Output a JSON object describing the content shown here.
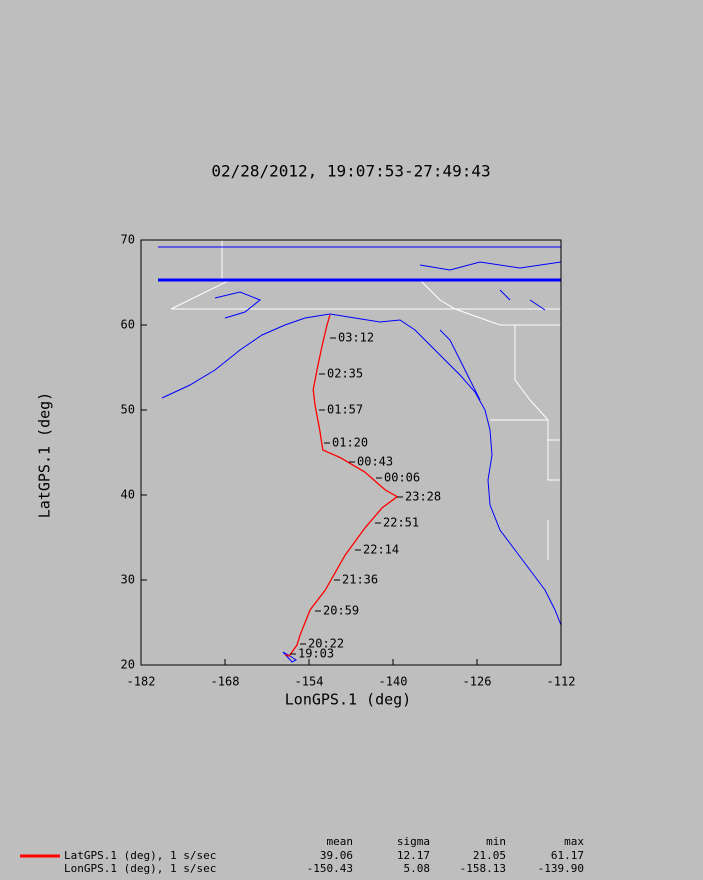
{
  "chart_data": {
    "type": "line",
    "title": "02/28/2012, 19:07:53-27:49:43",
    "x_label": "LonGPS.1 (deg)",
    "y_label": "LatGPS.1 (deg)",
    "x": [
      -158.0,
      -157.3,
      -156.0,
      -155.5,
      -153.8,
      -151.3,
      -148.0,
      -144.7,
      -141.8,
      -139.3,
      -141.3,
      -144.7,
      -148.8,
      -151.7,
      -152.2,
      -153.0,
      -153.3,
      -152.5,
      -151.8,
      -151.0,
      -150.5
    ],
    "series": [
      {
        "name": "LatGPS.1 (deg), 1 s/sec",
        "color": "#ff0000",
        "values": [
          21.2,
          21.06,
          22.35,
          23.5,
          26.5,
          28.8,
          32.9,
          36.1,
          38.5,
          39.8,
          40.6,
          42.7,
          44.4,
          45.3,
          47.6,
          50.6,
          52.4,
          55.3,
          57.6,
          60.0,
          61.2
        ]
      }
    ],
    "xlim": [
      -182,
      -112
    ],
    "xticks": [
      -182,
      -168,
      -154,
      -140,
      -126,
      -112
    ],
    "ylim": [
      20,
      70
    ],
    "yticks": [
      20,
      30,
      40,
      50,
      60,
      70
    ],
    "time_labels": [
      "03:12",
      "02:35",
      "01:57",
      "01:20",
      "00:43",
      "00:06",
      "23:28",
      "22:51",
      "22:14",
      "21:36",
      "20:59",
      "20:22",
      "19:03"
    ],
    "stats": {
      "columns": [
        "mean",
        "sigma",
        "min",
        "max"
      ],
      "rows": [
        {
          "name": "LatGPS.1 (deg), 1 s/sec",
          "values": [
            39.06,
            12.17,
            21.05,
            61.17
          ]
        },
        {
          "name": "LonGPS.1 (deg), 1 s/sec",
          "values": [
            -150.43,
            5.08,
            -158.13,
            {
              "value": -139.9,
              "label": "-139.90"
            }
          ]
        }
      ]
    }
  }
}
